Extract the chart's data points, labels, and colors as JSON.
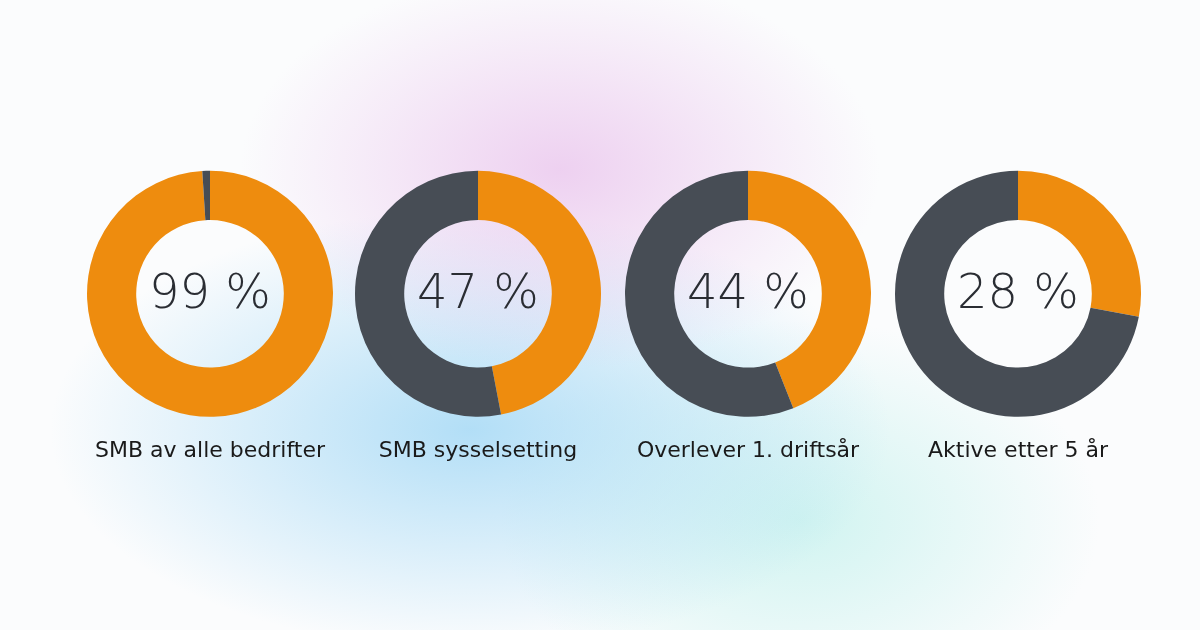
{
  "chart_data": [
    {
      "type": "donut",
      "title": "SMB av alle bedrifter",
      "categories": [
        null,
        null
      ],
      "values": [
        99,
        1
      ],
      "colors": [
        "#ee8c0e",
        "#474d55"
      ],
      "value_labels": [
        "99 %",
        null
      ],
      "legend": false
    },
    {
      "type": "donut",
      "title": "SMB sysselsetting",
      "categories": [
        null,
        null
      ],
      "values": [
        47,
        53
      ],
      "colors": [
        "#ee8c0e",
        "#474d55"
      ],
      "value_labels": [
        "47 %",
        null
      ],
      "legend": false
    },
    {
      "type": "donut",
      "title": "Overlever 1. driftsår",
      "categories": [
        null,
        null
      ],
      "values": [
        44,
        56
      ],
      "colors": [
        "#ee8c0e",
        "#474d55"
      ],
      "value_labels": [
        "44 %",
        null
      ],
      "legend": false
    },
    {
      "type": "donut",
      "title": "Aktive etter 5 år",
      "categories": [
        null,
        null
      ],
      "values": [
        28,
        72
      ],
      "colors": [
        "#ee8c0e",
        "#474d55"
      ],
      "value_labels": [
        "28 %",
        null
      ],
      "legend": false
    }
  ]
}
